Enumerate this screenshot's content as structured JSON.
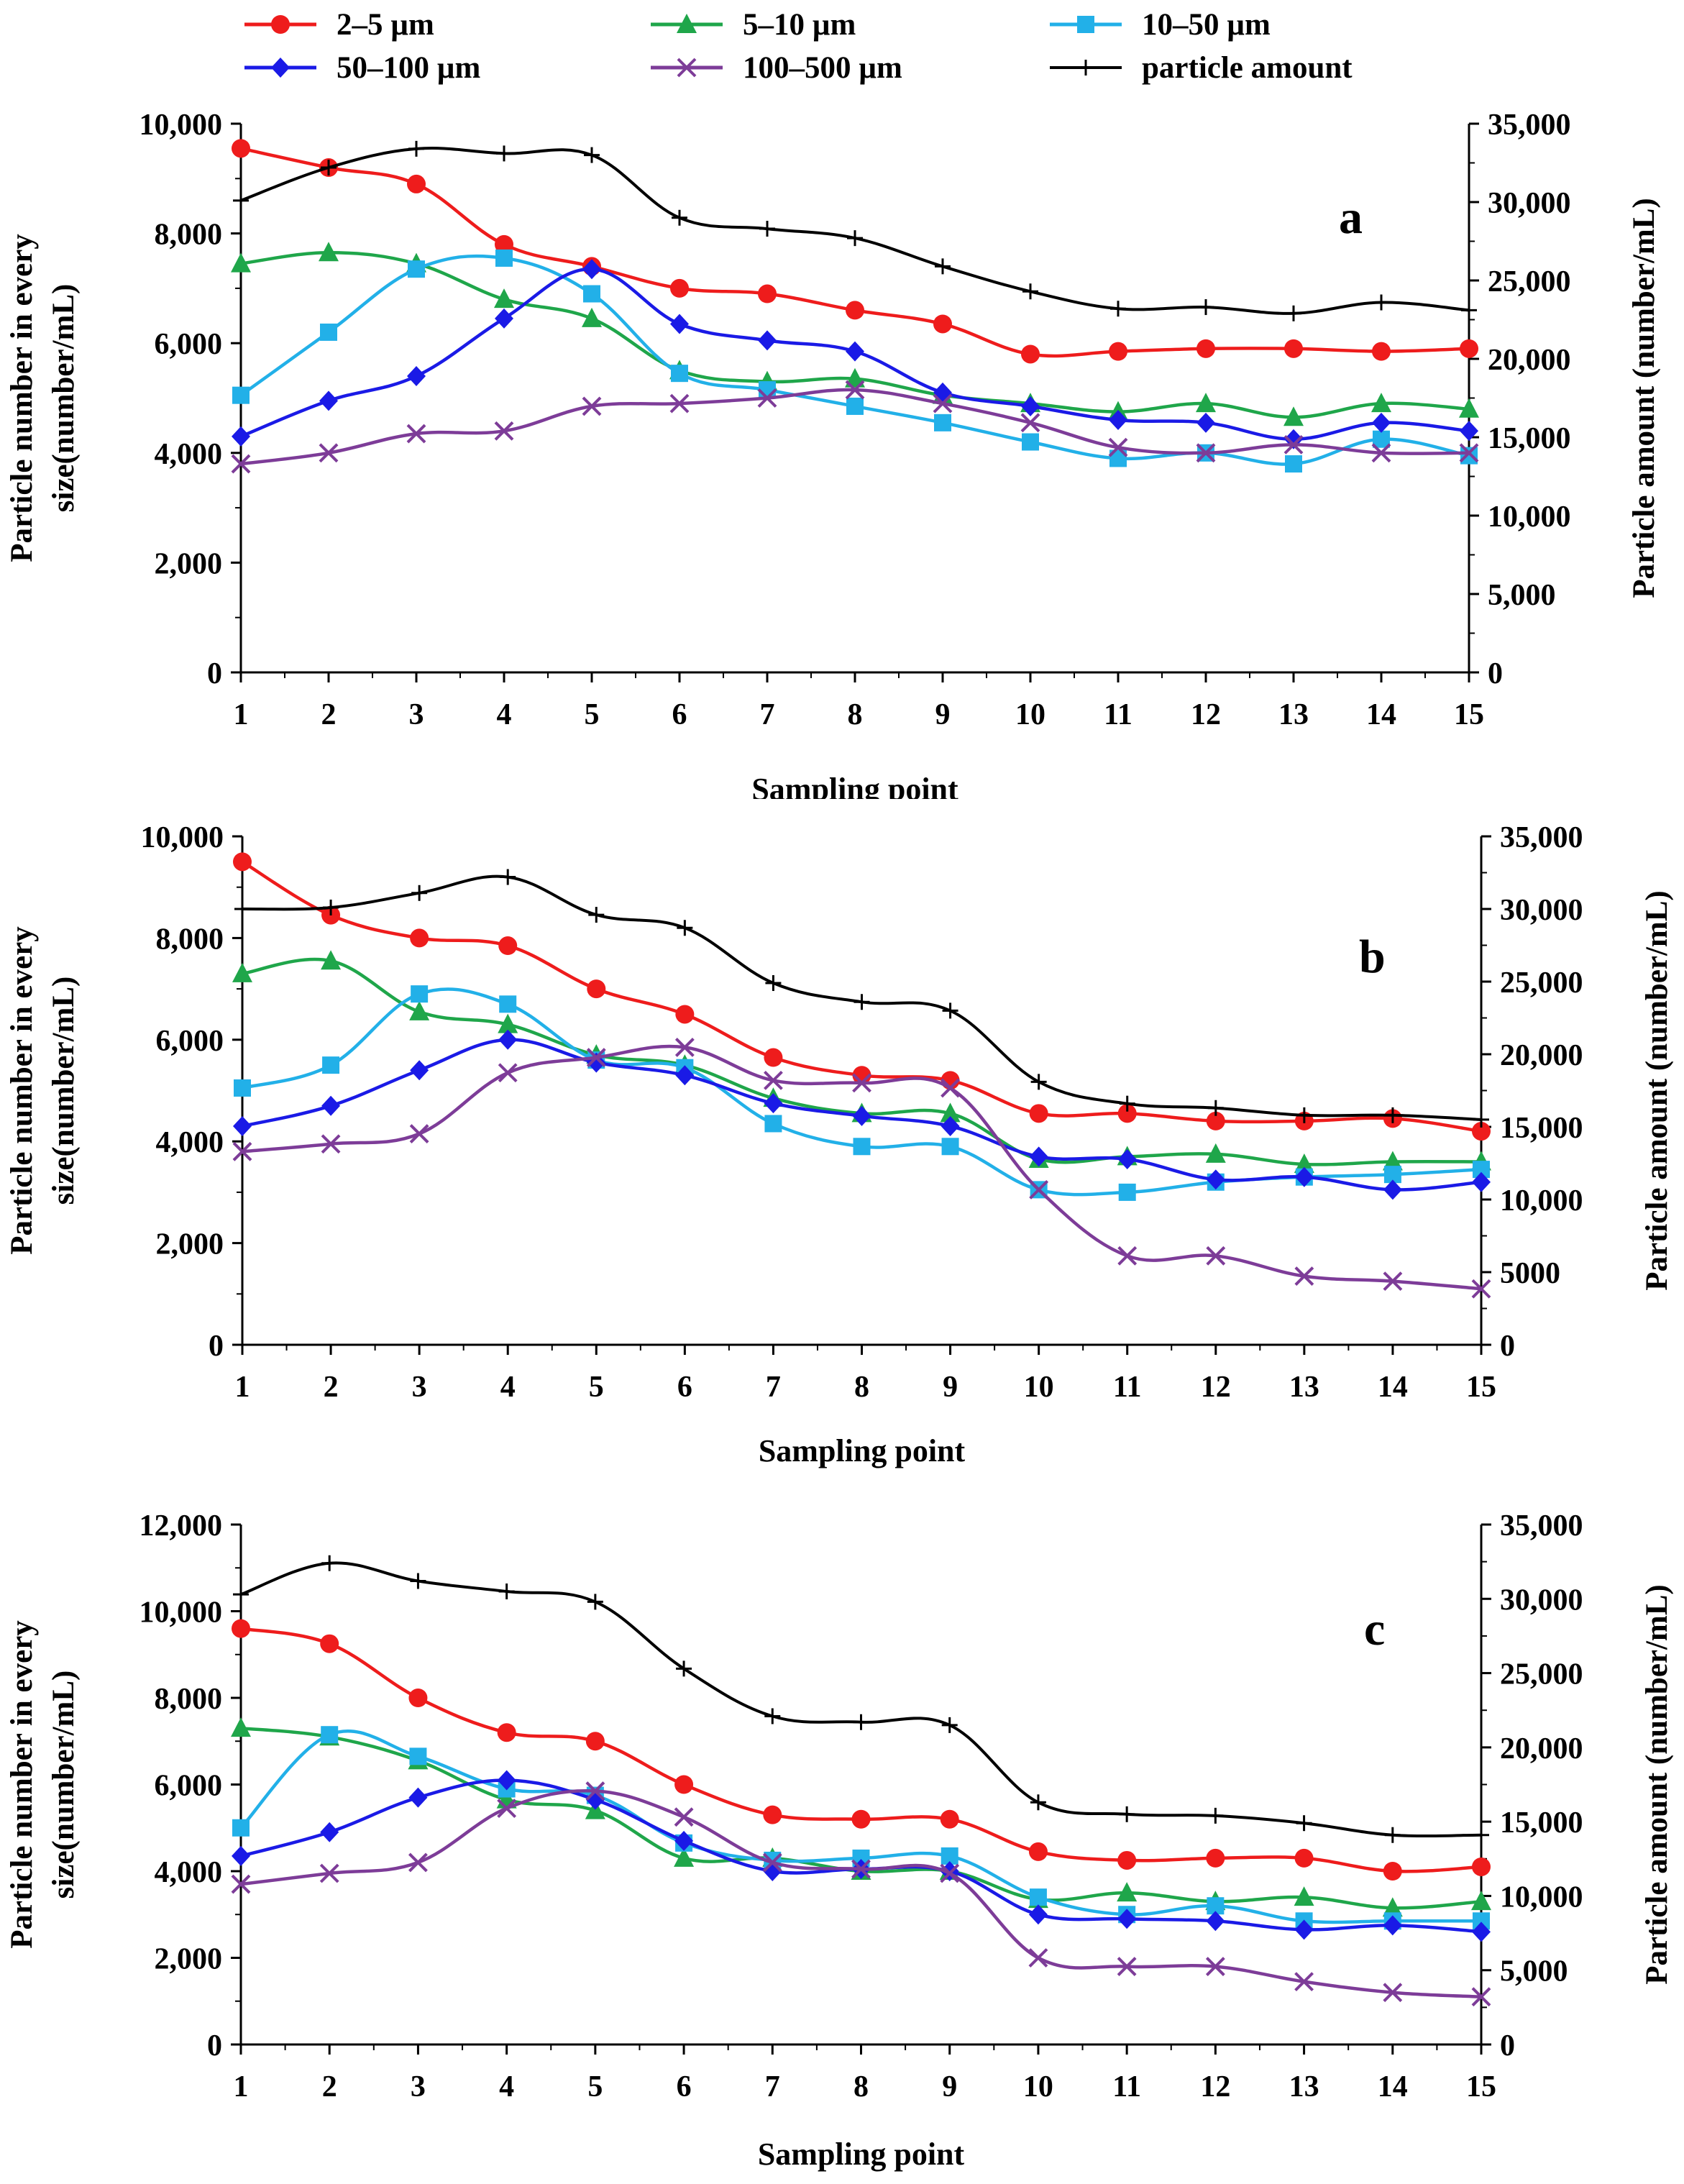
{
  "legend": {
    "entries": [
      {
        "label": "2–5 µm",
        "color": "#ee1c1c",
        "marker": "circle"
      },
      {
        "label": "5–10 µm",
        "color": "#1fa64a",
        "marker": "triangle"
      },
      {
        "label": "10–50 µm",
        "color": "#22b0e8",
        "marker": "square"
      },
      {
        "label": "50–100 µm",
        "color": "#1a1ae6",
        "marker": "diamond"
      },
      {
        "label": "100–500 µm",
        "color": "#7d3c98",
        "marker": "x"
      },
      {
        "label": "particle amount",
        "color": "#000000",
        "marker": "plus"
      }
    ]
  },
  "chart_data": [
    {
      "type": "line",
      "panel": "a",
      "xlabel": "Sampling point",
      "ylabel_left": "Particle number in every size(number/mL)",
      "ylabel_right": "Particle amount (number/mL)",
      "x": [
        1,
        2,
        3,
        4,
        5,
        6,
        7,
        8,
        9,
        10,
        11,
        12,
        13,
        14,
        15
      ],
      "ylim_left": [
        0,
        10000
      ],
      "yticks_left": [
        0,
        2000,
        4000,
        6000,
        8000,
        10000
      ],
      "yticklabels_left": [
        "0",
        "2,000",
        "4,000",
        "6,000",
        "8,000",
        "10,000"
      ],
      "ylim_right": [
        0,
        35000
      ],
      "yticks_right": [
        0,
        5000,
        10000,
        15000,
        20000,
        25000,
        30000,
        35000
      ],
      "yticklabels_right": [
        "0",
        "5,000",
        "10,000",
        "15,000",
        "20,000",
        "25,000",
        "30,000",
        "35,000"
      ],
      "series": [
        {
          "name": "2–5 µm",
          "axis": "left",
          "values": [
            9550,
            9200,
            8900,
            7800,
            7400,
            7000,
            6900,
            6600,
            6350,
            5800,
            5850,
            5900,
            5900,
            5850,
            5900
          ]
        },
        {
          "name": "5–10 µm",
          "axis": "left",
          "values": [
            7450,
            7650,
            7450,
            6800,
            6450,
            5500,
            5300,
            5350,
            5050,
            4900,
            4750,
            4900,
            4650,
            4900,
            4800
          ]
        },
        {
          "name": "10–50 µm",
          "axis": "left",
          "values": [
            5050,
            6200,
            7350,
            7550,
            6900,
            5450,
            5150,
            4850,
            4550,
            4200,
            3900,
            4000,
            3800,
            4250,
            3950
          ]
        },
        {
          "name": "50–100 µm",
          "axis": "left",
          "values": [
            4300,
            4950,
            5400,
            6450,
            7350,
            6350,
            6050,
            5850,
            5100,
            4850,
            4600,
            4550,
            4250,
            4550,
            4400
          ]
        },
        {
          "name": "100–500 µm",
          "axis": "left",
          "values": [
            3800,
            4000,
            4350,
            4400,
            4850,
            4900,
            5000,
            5150,
            4900,
            4550,
            4100,
            4000,
            4150,
            4000,
            4000
          ]
        },
        {
          "name": "particle amount",
          "axis": "right",
          "values": [
            30100,
            32200,
            33400,
            33100,
            33000,
            29000,
            28300,
            27700,
            25900,
            24300,
            23200,
            23300,
            22900,
            23600,
            23100
          ]
        }
      ],
      "annotation": "a"
    },
    {
      "type": "line",
      "panel": "b",
      "xlabel": "Sampling point",
      "ylabel_left": "Particle number in every size(number/mL)",
      "ylabel_right": "Particle amount (number/mL)",
      "x": [
        1,
        2,
        3,
        4,
        5,
        6,
        7,
        8,
        9,
        10,
        11,
        12,
        13,
        14,
        15
      ],
      "ylim_left": [
        0,
        10000
      ],
      "yticks_left": [
        0,
        2000,
        4000,
        6000,
        8000,
        10000
      ],
      "yticklabels_left": [
        "0",
        "2,000",
        "4,000",
        "6,000",
        "8,000",
        "10,000"
      ],
      "ylim_right": [
        0,
        35000
      ],
      "yticks_right": [
        0,
        5000,
        10000,
        15000,
        20000,
        25000,
        30000,
        35000
      ],
      "yticklabels_right": [
        "0",
        "5000",
        "10,000",
        "15,000",
        "20,000",
        "25,000",
        "30,000",
        "35,000"
      ],
      "series": [
        {
          "name": "2–5 µm",
          "axis": "left",
          "values": [
            9500,
            8450,
            8000,
            7850,
            7000,
            6500,
            5650,
            5300,
            5200,
            4550,
            4550,
            4400,
            4400,
            4450,
            4200
          ]
        },
        {
          "name": "5–10 µm",
          "axis": "left",
          "values": [
            7300,
            7550,
            6550,
            6300,
            5700,
            5500,
            4850,
            4550,
            4550,
            3650,
            3700,
            3750,
            3550,
            3600,
            3600
          ]
        },
        {
          "name": "10–50 µm",
          "axis": "left",
          "values": [
            5050,
            5500,
            6900,
            6700,
            5600,
            5450,
            4350,
            3900,
            3900,
            3050,
            3000,
            3200,
            3300,
            3350,
            3450
          ]
        },
        {
          "name": "50–100 µm",
          "axis": "left",
          "values": [
            4300,
            4700,
            5400,
            6000,
            5550,
            5300,
            4750,
            4500,
            4300,
            3700,
            3650,
            3250,
            3300,
            3050,
            3200
          ]
        },
        {
          "name": "100–500 µm",
          "axis": "left",
          "values": [
            3800,
            3950,
            4150,
            5350,
            5650,
            5850,
            5200,
            5150,
            5050,
            3050,
            1750,
            1750,
            1350,
            1250,
            1100
          ]
        },
        {
          "name": "particle amount",
          "axis": "right",
          "values": [
            30000,
            30100,
            31100,
            32200,
            29600,
            28700,
            24900,
            23600,
            23000,
            18100,
            16600,
            16300,
            15800,
            15800,
            15500
          ]
        }
      ],
      "annotation": "b"
    },
    {
      "type": "line",
      "panel": "c",
      "xlabel": "Sampling point",
      "ylabel_left": "Particle number in every size(number/mL)",
      "ylabel_right": "Particle amount (number/mL)",
      "x": [
        1,
        2,
        3,
        4,
        5,
        6,
        7,
        8,
        9,
        10,
        11,
        12,
        13,
        14,
        15
      ],
      "ylim_left": [
        0,
        12000
      ],
      "yticks_left": [
        0,
        2000,
        4000,
        6000,
        8000,
        10000,
        12000
      ],
      "yticklabels_left": [
        "0",
        "2,000",
        "4,000",
        "6,000",
        "8,000",
        "10,000",
        "12,000"
      ],
      "ylim_right": [
        0,
        35000
      ],
      "yticks_right": [
        0,
        5000,
        10000,
        15000,
        20000,
        25000,
        30000,
        35000
      ],
      "yticklabels_right": [
        "0",
        "5,000",
        "10,000",
        "15,000",
        "20,000",
        "25,000",
        "30,000",
        "35,000"
      ],
      "series": [
        {
          "name": "2–5 µm",
          "axis": "left",
          "values": [
            9600,
            9250,
            8000,
            7200,
            7000,
            6000,
            5300,
            5200,
            5200,
            4450,
            4250,
            4300,
            4300,
            4000,
            4100
          ]
        },
        {
          "name": "5–10 µm",
          "axis": "left",
          "values": [
            7300,
            7100,
            6550,
            5650,
            5400,
            4300,
            4300,
            4000,
            4000,
            3350,
            3500,
            3300,
            3400,
            3150,
            3300
          ]
        },
        {
          "name": "10–50 µm",
          "axis": "left",
          "values": [
            5000,
            7150,
            6650,
            5900,
            5750,
            4650,
            4250,
            4300,
            4350,
            3400,
            3000,
            3200,
            2850,
            2850,
            2850
          ]
        },
        {
          "name": "50–100 µm",
          "axis": "left",
          "values": [
            4350,
            4900,
            5700,
            6100,
            5650,
            4700,
            4000,
            4050,
            4000,
            3000,
            2900,
            2850,
            2650,
            2750,
            2600
          ]
        },
        {
          "name": "100–500 µm",
          "axis": "left",
          "values": [
            3700,
            3950,
            4200,
            5450,
            5850,
            5250,
            4200,
            4050,
            3950,
            2000,
            1800,
            1800,
            1450,
            1200,
            1100
          ]
        },
        {
          "name": "particle amount",
          "axis": "right",
          "values": [
            30300,
            32400,
            31200,
            30500,
            29800,
            25300,
            22100,
            21700,
            21500,
            16300,
            15500,
            15400,
            14900,
            14100,
            14100
          ]
        }
      ],
      "annotation": "c"
    }
  ]
}
